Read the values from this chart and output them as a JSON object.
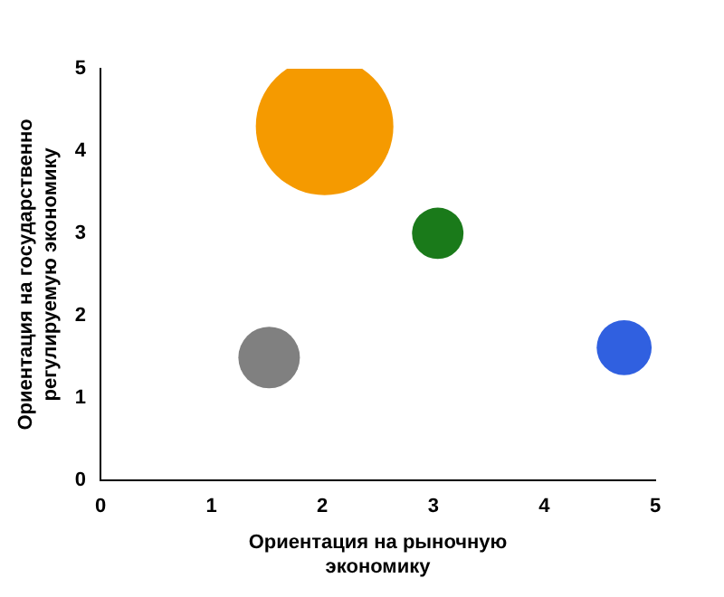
{
  "chart_data": {
    "type": "bubble",
    "xlabel": "Ориентация на рыночную экономику",
    "ylabel": "Ориентация на государственно регулируемую экономику",
    "x": [
      2.02,
      3.04,
      4.72,
      1.52
    ],
    "values": [
      4.3,
      3.0,
      1.61,
      1.49
    ],
    "sizes": [
      1,
      0.14,
      0.16,
      0.2
    ],
    "colors": [
      "#f59a00",
      "#1a7a1a",
      "#3060e0",
      "#808080"
    ],
    "xlim": [
      0,
      5
    ],
    "xticks": [
      0,
      1,
      2,
      3,
      4,
      5
    ],
    "ylim": [
      0,
      5
    ],
    "yticks": [
      0,
      1,
      2,
      3,
      4,
      5
    ],
    "grid": false,
    "legend": false
  }
}
